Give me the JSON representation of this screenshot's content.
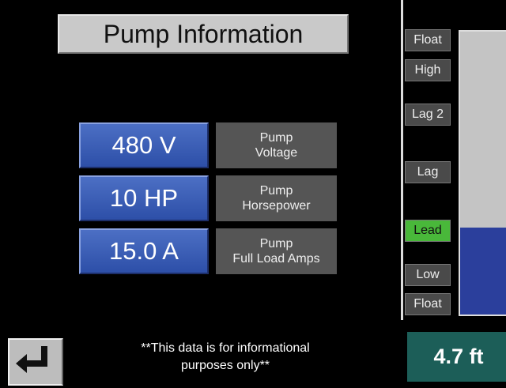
{
  "header": {
    "title": "Pump Information"
  },
  "fields": [
    {
      "value": "480 V",
      "label_lines": [
        "Pump",
        "Voltage"
      ]
    },
    {
      "value": "10 HP",
      "label_lines": [
        "Pump",
        "Horsepower"
      ]
    },
    {
      "value": "15.0 A",
      "label_lines": [
        "Pump",
        "Full Load Amps"
      ]
    }
  ],
  "note_lines": [
    "**This data is for informational",
    "purposes only**"
  ],
  "levels": [
    "Float",
    "High",
    "Lag 2",
    "Lag",
    "Lead",
    "Low",
    "Float"
  ],
  "level_reading": "4.7 ft"
}
